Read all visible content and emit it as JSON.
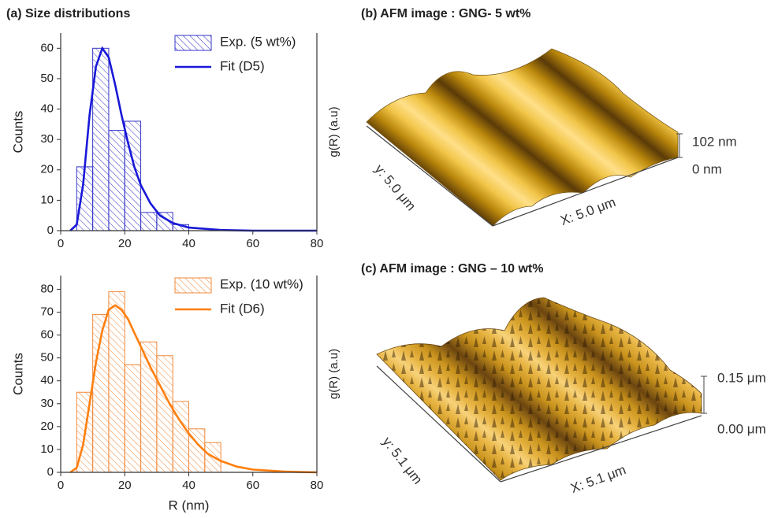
{
  "panel_title": "(a) Size distributions",
  "chart_data": [
    {
      "type": "histogram",
      "bins": [
        5,
        10,
        15,
        20,
        25,
        30,
        35,
        40
      ],
      "series": [
        {
          "name": "Exp. (5 wt%)",
          "type": "histogram",
          "color": "#3535c8",
          "values": [
            21,
            60,
            33,
            36,
            6,
            6,
            2
          ]
        },
        {
          "name": "Fit (D5)",
          "type": "line",
          "color": "#1818d8",
          "x": [
            3,
            5,
            7,
            9,
            11,
            13,
            15,
            17,
            19,
            21,
            23,
            25,
            28,
            31,
            35,
            40,
            50,
            60,
            80
          ],
          "values": [
            0,
            2,
            15,
            38,
            54,
            60,
            57,
            48,
            38,
            29,
            21,
            15,
            9,
            5,
            2.5,
            1,
            0.2,
            0,
            0
          ]
        }
      ],
      "xlim": [
        0,
        80
      ],
      "xticks": [
        0,
        20,
        40,
        60,
        80
      ],
      "ylim": [
        0,
        65
      ],
      "yticks": [
        0,
        10,
        20,
        30,
        40,
        50,
        60
      ],
      "y_label": "Counts",
      "y2_label": "g(R) (a.u)",
      "legend": "upper right"
    },
    {
      "type": "histogram",
      "bins": [
        5,
        10,
        15,
        20,
        25,
        30,
        35,
        40,
        45,
        50
      ],
      "series": [
        {
          "name": "Exp. (10 wt%)",
          "type": "histogram",
          "color": "#f0893a",
          "values": [
            35,
            69,
            79,
            47,
            57,
            51,
            31,
            19,
            13
          ]
        },
        {
          "name": "Fit (D6)",
          "type": "line",
          "color": "#ff7f0e",
          "x": [
            3,
            5,
            7,
            9,
            11,
            13,
            15,
            17,
            19,
            21,
            23,
            25,
            28,
            31,
            34,
            37,
            40,
            43,
            46,
            50,
            55,
            60,
            70,
            80
          ],
          "values": [
            0,
            2,
            12,
            30,
            48,
            62,
            71,
            73,
            71,
            67,
            61,
            55,
            46,
            38,
            30,
            23,
            17,
            12,
            8,
            5,
            2.5,
            1.2,
            0.3,
            0
          ]
        }
      ],
      "xlim": [
        0,
        80
      ],
      "xticks": [
        0,
        20,
        40,
        60,
        80
      ],
      "ylim": [
        0,
        86
      ],
      "yticks": [
        0,
        10,
        20,
        30,
        40,
        50,
        60,
        70,
        80
      ],
      "x_label": "R (nm)",
      "y_label": "Counts",
      "y2_label": "g(R) (a.u)",
      "legend": "upper right"
    }
  ],
  "afm_panels": [
    {
      "title": "(b) AFM image : GNG- 5 wt%",
      "z_max": "102 nm",
      "z_min": "0 nm",
      "y_size": "y: 5.0 μm",
      "x_size": "X: 5.0 μm"
    },
    {
      "title": "(c) AFM image : GNG – 10 wt%",
      "z_max": "0.15 μm",
      "z_min": "0.00 μm",
      "y_size": "y: 5.1 μm",
      "x_size": "X: 5.1 μm"
    }
  ]
}
